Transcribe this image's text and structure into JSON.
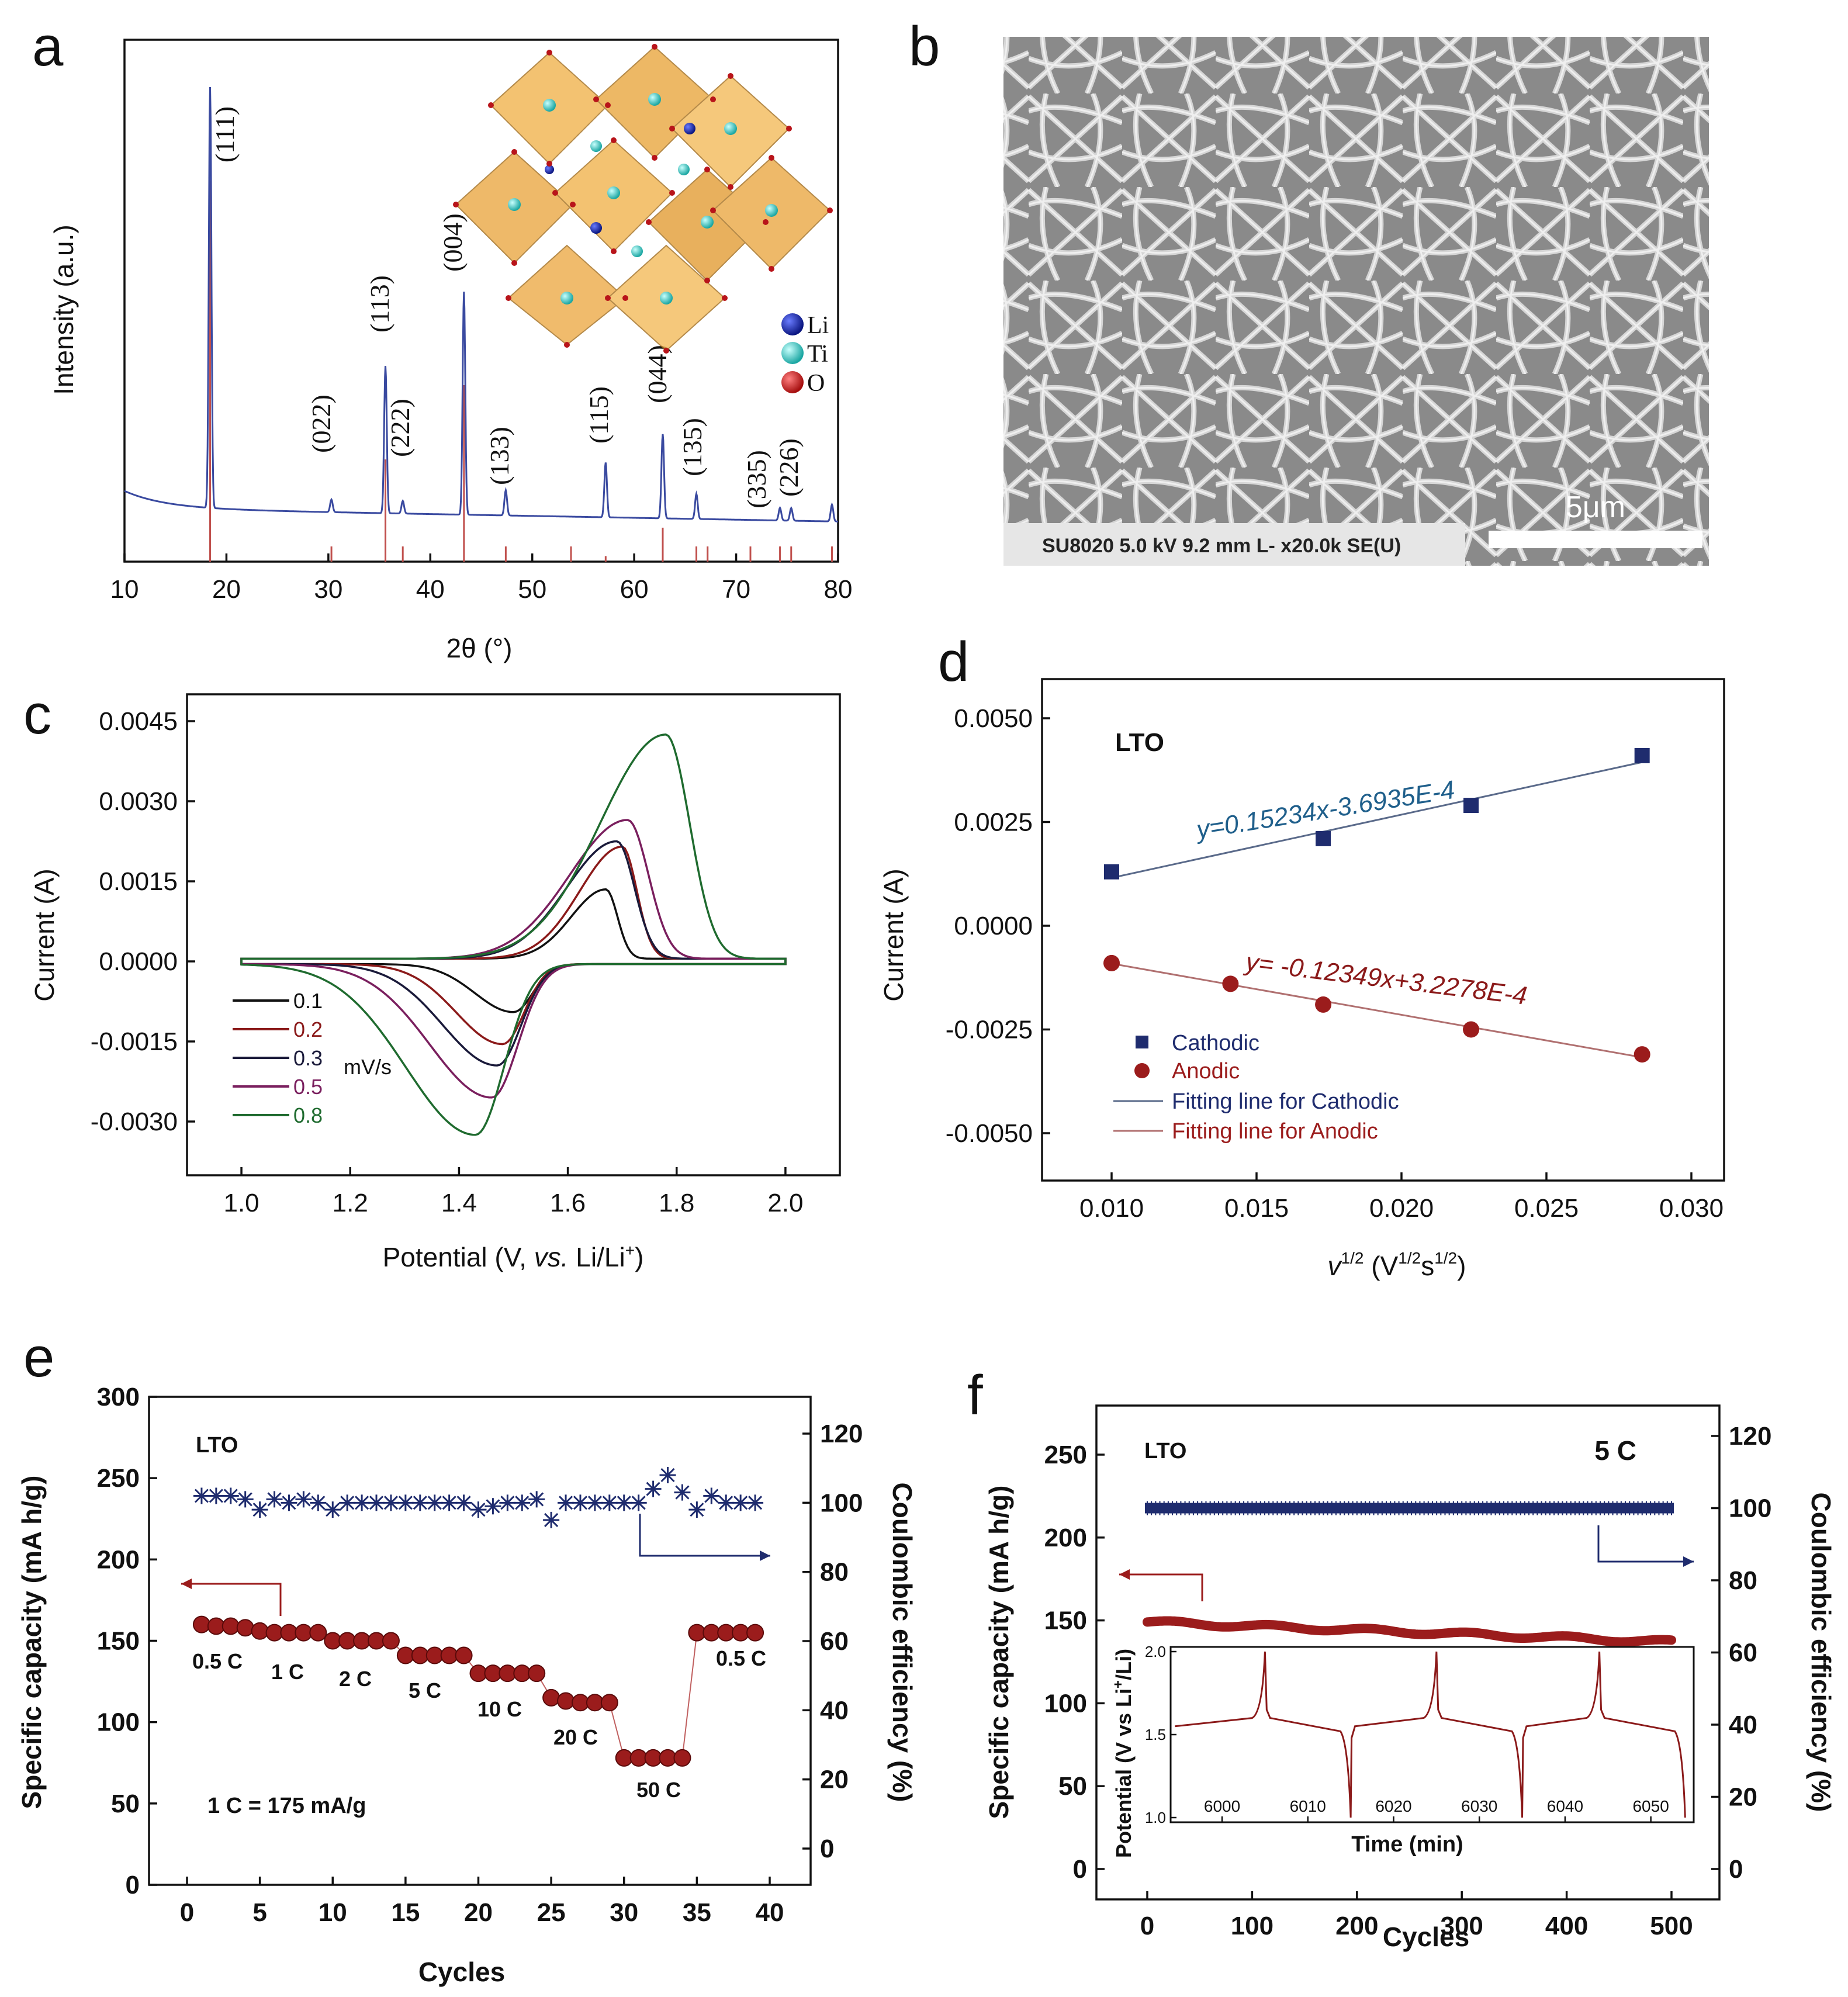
{
  "panel_labels": {
    "a": "a",
    "b": "b",
    "c": "c",
    "d": "d",
    "e": "e",
    "f": "f"
  },
  "colors": {
    "xrd_line": "#3a4aa0",
    "ref_line": "#c0504d",
    "cathodic": "#1f2c6e",
    "anodic": "#9b1c1c",
    "capacity": "#9b1c1c",
    "efficiency": "#1f2c6e",
    "cv_0_1": "#111111",
    "cv_0_2": "#8b1a1a",
    "cv_0_3": "#1a1a3a",
    "cv_0_5": "#7a1f5e",
    "cv_0_8": "#1f6b2f",
    "crystal": "#e8a93a"
  },
  "chart_data": [
    {
      "id": "a",
      "type": "line",
      "xlabel": "2θ (°)",
      "ylabel": "Intensity (a.u.)",
      "xlim": [
        10,
        80
      ],
      "xticks": [
        10,
        20,
        30,
        40,
        50,
        60,
        70,
        80
      ],
      "peaks": [
        {
          "x": 18.4,
          "h": 1.0,
          "label": "(111)"
        },
        {
          "x": 30.3,
          "h": 0.03,
          "label": "(022)"
        },
        {
          "x": 35.6,
          "h": 0.35,
          "label": "(113)"
        },
        {
          "x": 37.3,
          "h": 0.03,
          "label": "(222)"
        },
        {
          "x": 43.3,
          "h": 0.53,
          "label": "(004)"
        },
        {
          "x": 47.4,
          "h": 0.06,
          "label": "(133)"
        },
        {
          "x": 57.2,
          "h": 0.13,
          "label": "(115)"
        },
        {
          "x": 62.8,
          "h": 0.2,
          "label": "(044)"
        },
        {
          "x": 66.1,
          "h": 0.06,
          "label": "(135)"
        },
        {
          "x": 74.3,
          "h": 0.03,
          "label": "(335)"
        },
        {
          "x": 75.4,
          "h": 0.03,
          "label": "(226)"
        },
        {
          "x": 79.4,
          "h": 0.04,
          "label": ""
        }
      ],
      "reference_lines": [
        18.4,
        30.3,
        35.6,
        37.3,
        43.3,
        47.4,
        53.8,
        57.2,
        62.8,
        66.1,
        67.2,
        71.4,
        74.3,
        75.4,
        79.4
      ],
      "legend": [
        {
          "label": "Li",
          "color": "#1a2fb0"
        },
        {
          "label": "Ti",
          "color": "#39c9c6"
        },
        {
          "label": "O",
          "color": "#d81e1e"
        }
      ]
    },
    {
      "id": "c",
      "type": "line",
      "xlabel_pre": "Potential (V, ",
      "xlabel_it": "vs.",
      "xlabel_post": " Li/Li",
      "xlabel_sup": "+",
      "xlabel_end": ")",
      "ylabel": "Current (A)",
      "xlim": [
        0.9,
        2.1
      ],
      "ylim": [
        -0.004,
        0.005
      ],
      "xticks": [
        "1.0",
        "1.2",
        "1.4",
        "1.6",
        "1.8",
        "2.0"
      ],
      "yticks": [
        "0.0045",
        "0.0030",
        "0.0015",
        "0.0000",
        "-0.0015",
        "-0.0030"
      ],
      "legend_unit": "mV/s",
      "series": [
        {
          "name": "0.1",
          "color": "#111111",
          "anodic_peak": [
            1.67,
            0.0013
          ],
          "cathodic_peak": [
            1.5,
            -0.0009
          ]
        },
        {
          "name": "0.2",
          "color": "#8b1a1a",
          "anodic_peak": [
            1.7,
            0.0021
          ],
          "cathodic_peak": [
            1.48,
            -0.0015
          ]
        },
        {
          "name": "0.3",
          "color": "#1a1a3a",
          "anodic_peak": [
            1.69,
            0.0022
          ],
          "cathodic_peak": [
            1.47,
            -0.0019
          ]
        },
        {
          "name": "0.5",
          "color": "#7a1f5e",
          "anodic_peak": [
            1.71,
            0.0026
          ],
          "cathodic_peak": [
            1.46,
            -0.0025
          ]
        },
        {
          "name": "0.8",
          "color": "#1f6b2f",
          "anodic_peak": [
            1.78,
            0.0042
          ],
          "cathodic_peak": [
            1.43,
            -0.0032
          ]
        }
      ]
    },
    {
      "id": "d",
      "type": "scatter",
      "title": "LTO",
      "xlabel_main": "v",
      "xlabel_sup1": "1/2",
      "xlabel_mid": " (V",
      "xlabel_sup2": "1/2",
      "xlabel_mid2": "s",
      "xlabel_sup3": "1/2",
      "xlabel_end": ")",
      "ylabel": "Current (A)",
      "xlim": [
        0.007,
        0.031
      ],
      "ylim": [
        -0.006,
        0.006
      ],
      "xticks": [
        "0.010",
        "0.015",
        "0.020",
        "0.025",
        "0.030"
      ],
      "yticks": [
        "0.0050",
        "0.0025",
        "0.0000",
        "-0.0025",
        "-0.0050"
      ],
      "series": [
        {
          "name": "Cathodic",
          "x": [
            0.01,
            0.0173,
            0.0224,
            0.0283
          ],
          "y": [
            0.0013,
            0.0021,
            0.0029,
            0.0041
          ]
        },
        {
          "name": "Anodic",
          "x": [
            0.01,
            0.0141,
            0.0173,
            0.0224,
            0.0283
          ],
          "y": [
            -0.0009,
            -0.0014,
            -0.0019,
            -0.0025,
            -0.0031
          ]
        }
      ],
      "fits": [
        {
          "name": "Fitting line for Cathodic",
          "slope": 0.15234,
          "intercept": -0.00036935,
          "equation": "y=0.15234x-3.6935E-4"
        },
        {
          "name": "Fitting line for Anodic",
          "slope": -0.12349,
          "intercept": 0.00032278,
          "equation": "y= -0.12349x+3.2278E-4"
        }
      ]
    },
    {
      "id": "e",
      "type": "scatter",
      "title": "LTO",
      "note": "1 C = 175 mA/g",
      "xlabel": "Cycles",
      "ylabel_left": "Specific capacity (mA h/g)",
      "ylabel_right": "Coulombic efficiency (%)",
      "xlim": [
        -2.5,
        42.5
      ],
      "ylim_left": [
        0,
        300
      ],
      "ylim_right": [
        -10,
        130
      ],
      "xticks": [
        "0",
        "5",
        "10",
        "15",
        "20",
        "25",
        "30",
        "35",
        "40"
      ],
      "yticks_left": [
        "0",
        "50",
        "100",
        "150",
        "200",
        "250",
        "300"
      ],
      "yticks_right": [
        "0",
        "20",
        "40",
        "60",
        "80",
        "100",
        "120"
      ],
      "rate_labels": [
        "0.5 C",
        "1 C",
        "2 C",
        "5 C",
        "10 C",
        "20 C",
        "50 C",
        "0.5 C"
      ],
      "capacity": [
        160,
        159,
        159,
        158,
        156,
        155,
        155,
        155,
        155,
        150,
        150,
        150,
        150,
        150,
        141,
        141,
        141,
        141,
        141,
        130,
        130,
        130,
        130,
        130,
        115,
        113,
        112,
        112,
        112,
        78,
        78,
        78,
        78,
        78,
        155,
        155,
        155,
        155,
        155
      ],
      "efficiency": [
        102,
        102,
        102,
        101,
        98,
        101,
        100,
        101,
        100,
        98,
        100,
        100,
        100,
        100,
        100,
        100,
        100,
        100,
        100,
        98,
        99,
        100,
        100,
        101,
        95,
        100,
        100,
        100,
        100,
        100,
        100,
        104,
        108,
        103,
        98,
        102,
        100,
        100,
        100
      ]
    },
    {
      "id": "f",
      "type": "scatter",
      "title": "LTO",
      "rate": "5 C",
      "xlabel": "Cycles",
      "ylabel_left": "Specific capacity (mA h/g)",
      "ylabel_right": "Coulombic efficiency (%)",
      "xlim": [
        -50,
        550
      ],
      "ylim_left": [
        0,
        280
      ],
      "ylim_right": [
        0,
        130
      ],
      "xticks": [
        "0",
        "100",
        "200",
        "300",
        "400",
        "500"
      ],
      "yticks_left": [
        "0",
        "50",
        "100",
        "150",
        "200",
        "250"
      ],
      "yticks_right": [
        "0",
        "20",
        "40",
        "60",
        "80",
        "100",
        "120"
      ],
      "capacity_start": 149,
      "capacity_end": 137,
      "efficiency": 100,
      "inset": {
        "xlabel": "Time (min)",
        "ylabel_pre": "Potential (V vs Li",
        "ylabel_sup": "+",
        "ylabel_post": "/Li)",
        "xlim": [
          5994,
          6055
        ],
        "ylim": [
          1.0,
          2.0
        ],
        "xticks": [
          "6000",
          "6010",
          "6020",
          "6030",
          "6040",
          "6050"
        ],
        "yticks": [
          "1.0",
          "1.5",
          "2.0"
        ],
        "plateau": 1.55,
        "peaks_at": [
          6005,
          6025,
          6044
        ],
        "drops_at": [
          6015,
          6035,
          6054
        ]
      }
    }
  ],
  "sem": {
    "info": "SU8020 5.0 kV 9.2 mm L- x20.0k SE(U)",
    "scale": "5μm"
  }
}
